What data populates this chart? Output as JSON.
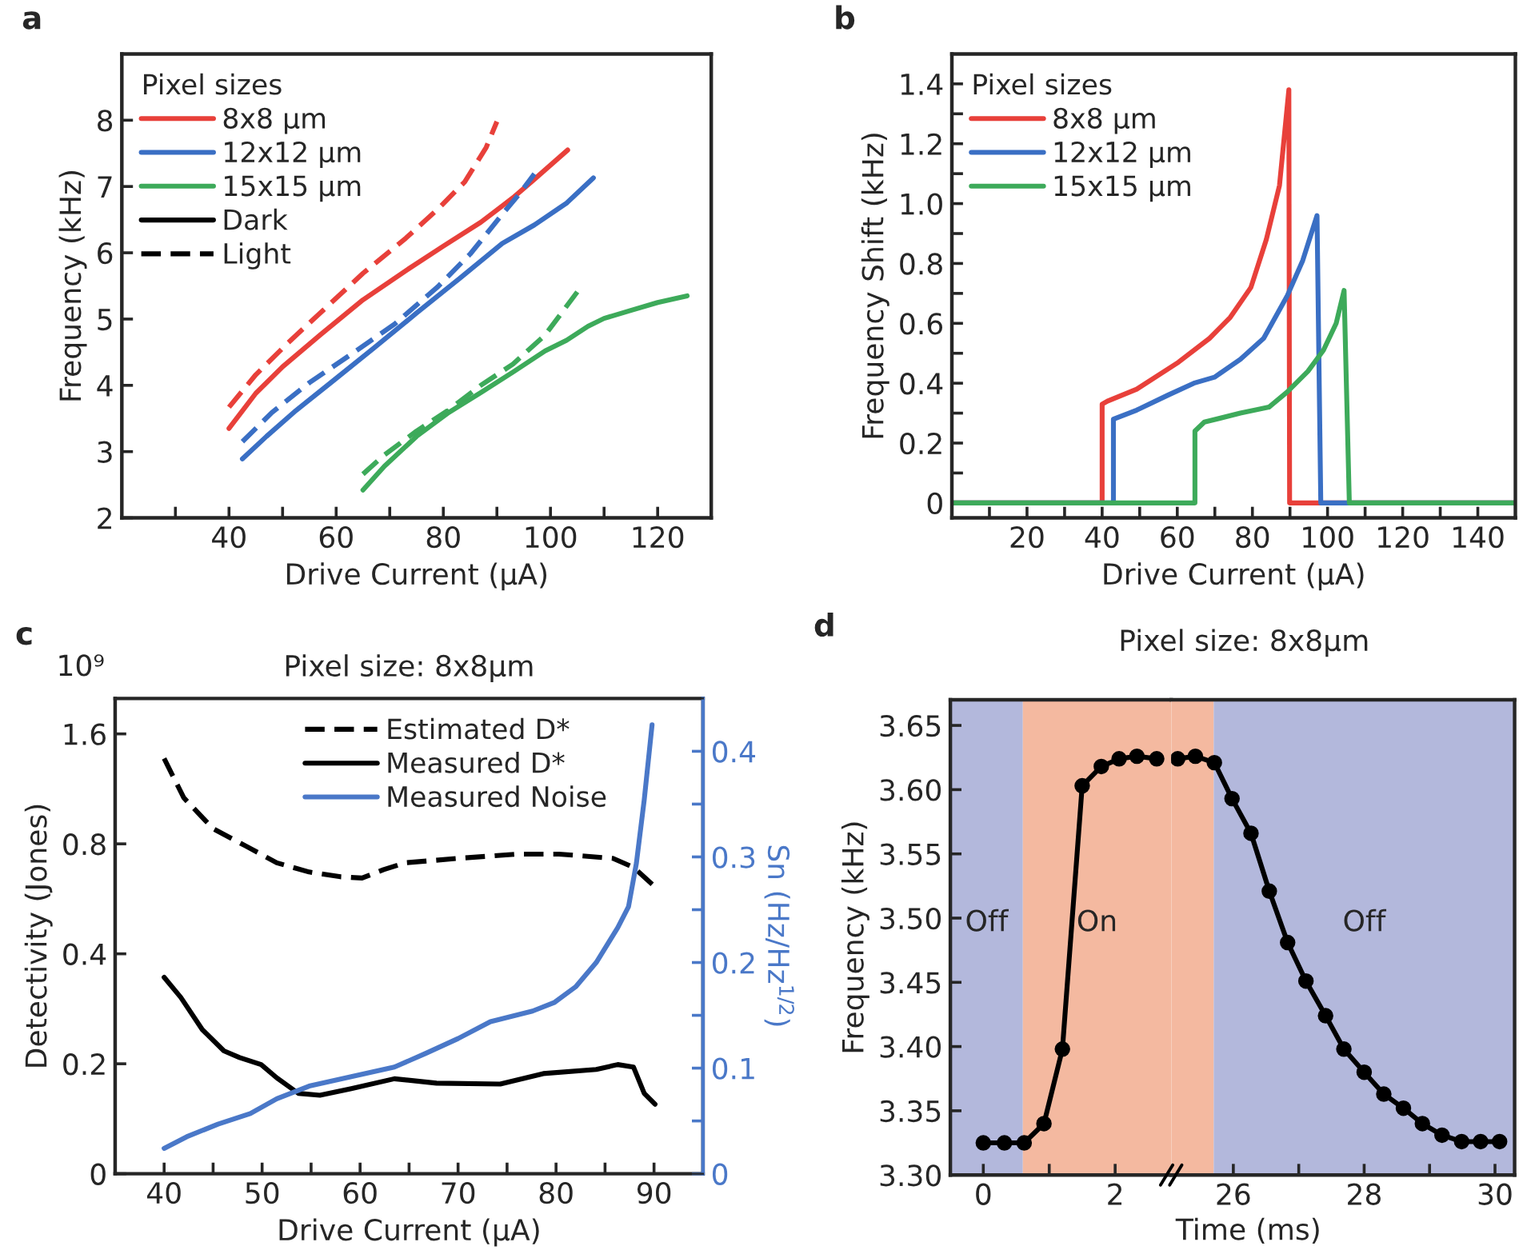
{
  "chart_data": [
    {
      "type": "line",
      "xlabel": "Drive Current (μA)",
      "ylabel": "Frequency (kHz)",
      "xlim": [
        20,
        130
      ],
      "ylim": [
        2,
        9
      ],
      "xticks": [
        {
          "value": 30,
          "label": null
        },
        40,
        {
          "value": 50,
          "label": null
        },
        60,
        {
          "value": 70,
          "label": null
        },
        80,
        {
          "value": 90,
          "label": null
        },
        100,
        {
          "value": 110,
          "label": null
        },
        120
      ],
      "yticks": [
        2,
        3,
        4,
        5,
        6,
        7,
        8
      ],
      "legend": "top left",
      "legend_title": "Pixel sizes",
      "annotations": [
        "a",
        "Dark",
        "Light"
      ],
      "series": [
        {
          "name": "8x8 μm",
          "color": "#e8403a",
          "line_style": "solid",
          "x": [
            40,
            45,
            50,
            57,
            65,
            73,
            80,
            87,
            93,
            97,
            103.2
          ],
          "values": [
            3.35,
            3.88,
            4.28,
            4.76,
            5.29,
            5.73,
            6.1,
            6.46,
            6.83,
            7.11,
            7.55
          ]
        },
        {
          "name": "12x12 μm",
          "color": "#3a6fc4",
          "line_style": "solid",
          "x": [
            42.5,
            47,
            52.5,
            59,
            67,
            75,
            83,
            91,
            97,
            103,
            108
          ],
          "values": [
            2.89,
            3.23,
            3.62,
            4.04,
            4.56,
            5.09,
            5.61,
            6.14,
            6.42,
            6.75,
            7.13
          ]
        },
        {
          "name": "15x15 μm",
          "color": "#3daa5a",
          "line_style": "solid",
          "x": [
            65,
            69,
            75,
            81,
            87,
            93,
            99,
            103,
            107,
            110,
            115,
            120,
            125.5
          ],
          "values": [
            2.42,
            2.78,
            3.23,
            3.59,
            3.89,
            4.2,
            4.52,
            4.68,
            4.89,
            5.01,
            5.13,
            5.25,
            5.35
          ]
        },
        {
          "color": "#e8403a",
          "line_style": "dashed",
          "x": [
            40,
            45,
            51,
            57,
            65,
            73,
            79,
            84,
            88,
            90
          ],
          "values": [
            3.67,
            4.16,
            4.64,
            5.09,
            5.69,
            6.22,
            6.66,
            7.07,
            7.59,
            7.98
          ]
        },
        {
          "color": "#3a6fc4",
          "line_style": "dashed",
          "x": [
            42.5,
            48,
            55,
            63,
            71,
            79,
            85,
            91,
            94,
            97
          ],
          "values": [
            3.15,
            3.59,
            4.04,
            4.48,
            4.93,
            5.49,
            5.98,
            6.58,
            6.87,
            7.19
          ]
        },
        {
          "color": "#3daa5a",
          "line_style": "dashed",
          "x": [
            65,
            69,
            75,
            81,
            87,
            93,
            99,
            105
          ],
          "values": [
            2.66,
            2.95,
            3.31,
            3.63,
            4.0,
            4.32,
            4.76,
            5.41
          ]
        }
      ]
    },
    {
      "type": "line",
      "xlabel": "Drive Current (μA)",
      "ylabel": "Frequency Shift (kHz)",
      "xlim": [
        0,
        150
      ],
      "ylim": [
        -0.05,
        1.5
      ],
      "xticks": [
        {
          "value": 10,
          "label": null
        },
        20,
        {
          "value": 30,
          "label": null
        },
        40,
        {
          "value": 50,
          "label": null
        },
        60,
        {
          "value": 70,
          "label": null
        },
        80,
        {
          "value": 90,
          "label": null
        },
        100,
        {
          "value": 110,
          "label": null
        },
        120,
        {
          "value": 130,
          "label": null
        },
        140
      ],
      "yticks": [
        0,
        {
          "value": 0.1,
          "label": null
        },
        0.2,
        {
          "value": 0.3,
          "label": null
        },
        0.4,
        {
          "value": 0.5,
          "label": null
        },
        0.6,
        {
          "value": 0.7,
          "label": null
        },
        0.8,
        {
          "value": 0.9,
          "label": null
        },
        {
          "value": 1.0,
          "label": "1.0"
        },
        {
          "value": 1.1,
          "label": null
        },
        1.2,
        {
          "value": 1.3,
          "label": null
        },
        1.4
      ],
      "legend": "top left",
      "legend_title": "Pixel sizes",
      "annotations": [
        "b"
      ],
      "series": [
        {
          "name": "8x8 μm",
          "color": "#e8403a",
          "line_style": "solid",
          "x": [
            0,
            40,
            40,
            41.4,
            49.2,
            60.3,
            68.6,
            74.1,
            79.6,
            83.7,
            87.2,
            89.7,
            89.9,
            150
          ],
          "values": [
            0,
            0,
            0.33,
            0.34,
            0.38,
            0.47,
            0.55,
            0.62,
            0.72,
            0.88,
            1.06,
            1.38,
            0,
            0
          ]
        },
        {
          "name": "12x12 μm",
          "color": "#3a6fc4",
          "line_style": "solid",
          "x": [
            0,
            43,
            43,
            49.2,
            57.5,
            64.4,
            69.9,
            76.8,
            83.0,
            89.2,
            93.4,
            97.2,
            98.2,
            150
          ],
          "values": [
            0,
            0,
            0.28,
            0.31,
            0.36,
            0.4,
            0.42,
            0.48,
            0.55,
            0.69,
            0.81,
            0.96,
            0,
            0
          ]
        },
        {
          "name": "15x15 μm",
          "color": "#3daa5a",
          "line_style": "solid",
          "x": [
            0,
            64.7,
            64.7,
            67.2,
            76.8,
            84.4,
            89.2,
            94.8,
            98.9,
            102.3,
            104.4,
            105.8,
            150
          ],
          "values": [
            0,
            0,
            0.24,
            0.27,
            0.3,
            0.32,
            0.37,
            0.44,
            0.51,
            0.6,
            0.71,
            0,
            0
          ]
        }
      ]
    },
    {
      "type": "line",
      "title": "Pixel size: 8x8μm",
      "xlabel": "Drive Current (μA)",
      "ylabel": "Detectivity (Jones)",
      "y2label": "Sn (Hz/Hz$^{1/2}$)",
      "log": "y",
      "xlim": [
        35,
        95
      ],
      "ylim": [
        0.1,
        2.0
      ],
      "y2lim": [
        0,
        0.45
      ],
      "xticks": [
        40,
        {
          "value": 45,
          "label": null
        },
        50,
        {
          "value": 55,
          "label": null
        },
        60,
        {
          "value": 65,
          "label": null
        },
        70,
        {
          "value": 75,
          "label": null
        },
        80,
        {
          "value": 85,
          "label": null
        },
        90
      ],
      "yticks": [
        {
          "value": 0.1,
          "label": "0"
        },
        0.2,
        0.4,
        0.8,
        1.6
      ],
      "y2ticks": [
        0,
        {
          "value": 0.05,
          "label": null
        },
        0.1,
        {
          "value": 0.15,
          "label": null
        },
        0.2,
        {
          "value": 0.25,
          "label": null
        },
        0.3,
        {
          "value": 0.35,
          "label": null
        },
        0.4
      ],
      "legend": "top right",
      "annotations": [
        "c",
        "10⁹"
      ],
      "series": [
        {
          "name": "Estimated D*",
          "color": "#000000",
          "line_style": "dashed",
          "x": [
            40,
            42,
            45,
            48.3,
            51.5,
            54.8,
            58,
            60.2,
            62.4,
            64.6,
            70,
            76,
            80.3,
            85.8,
            87.9,
            90.1
          ],
          "values": [
            1.37,
            1.07,
            0.88,
            0.79,
            0.71,
            0.67,
            0.65,
            0.645,
            0.68,
            0.71,
            0.73,
            0.75,
            0.75,
            0.73,
            0.69,
            0.61
          ]
        },
        {
          "name": "Measured D*",
          "color": "#000000",
          "line_style": "solid",
          "x": [
            40,
            41.7,
            43.9,
            46.1,
            47.7,
            49.9,
            51.5,
            53.7,
            55.9,
            59.1,
            63.5,
            67.8,
            74.3,
            78.7,
            84.1,
            86.3,
            87.9,
            89.0,
            90.1
          ],
          "values": [
            0.345,
            0.304,
            0.248,
            0.217,
            0.208,
            0.199,
            0.183,
            0.166,
            0.164,
            0.171,
            0.182,
            0.177,
            0.176,
            0.188,
            0.193,
            0.199,
            0.196,
            0.166,
            0.155
          ]
        },
        {
          "name": "Measured Noise",
          "color": "#4a78c8",
          "line_style": "solid",
          "axis": "y2",
          "x": [
            40,
            42.3,
            45.5,
            48.8,
            51.5,
            54.8,
            59.1,
            63.5,
            66.7,
            70,
            73.3,
            77.6,
            79.8,
            82,
            84.1,
            86.3,
            87.4,
            88.2,
            89,
            89.8
          ],
          "values": [
            0.024,
            0.035,
            0.047,
            0.057,
            0.071,
            0.083,
            0.092,
            0.101,
            0.114,
            0.128,
            0.144,
            0.154,
            0.162,
            0.177,
            0.2,
            0.233,
            0.253,
            0.294,
            0.354,
            0.425
          ]
        }
      ]
    },
    {
      "type": "line",
      "title": "Pixel size: 8x8μm",
      "xlabel": "Time (ms)",
      "ylabel": "Frequency (kHz)",
      "marker": "circle",
      "xlim": [
        -0.5,
        2.85
      ],
      "ylim": [
        3.3,
        3.67
      ],
      "xticks": [
        0,
        {
          "value": 1,
          "label": null
        },
        2
      ],
      "yticks": [
        {
          "value": 3.3,
          "label": "3.30"
        },
        {
          "value": 3.35,
          "label": "3.35"
        },
        {
          "value": 3.4,
          "label": "3.40"
        },
        {
          "value": 3.45,
          "label": "3.45"
        },
        {
          "value": 3.5,
          "label": "3.50"
        },
        {
          "value": 3.55,
          "label": "3.55"
        },
        {
          "value": 3.6,
          "label": "3.60"
        },
        {
          "value": 3.65,
          "label": "3.65"
        }
      ],
      "annotations": [
        "d"
      ],
      "bands": [
        {
          "axis": "x",
          "from": -0.5,
          "to": 0.6,
          "label": "Off",
          "color": "#b3b8dc"
        },
        {
          "axis": "x",
          "from": 0.6,
          "to": 2.85,
          "label": "On",
          "color": "#f4b9a0"
        }
      ],
      "series": [
        {
          "color": "#000000",
          "line_style": "solid",
          "x": [
            0,
            0.32,
            0.62,
            0.92,
            1.2,
            1.5,
            1.79,
            2.06,
            2.33,
            2.63
          ],
          "values": [
            3.325,
            3.325,
            3.325,
            3.34,
            3.398,
            3.603,
            3.618,
            3.624,
            3.626,
            3.624
          ]
        }
      ]
    },
    {
      "type": "line",
      "marker": "circle",
      "xlim": [
        25.05,
        30.3
      ],
      "ylim": [
        3.3,
        3.67
      ],
      "tick_labels": "x",
      "xticks": [
        26,
        {
          "value": 27,
          "label": null
        },
        28,
        {
          "value": 29,
          "label": null
        },
        30
      ],
      "bands": [
        {
          "axis": "x",
          "from": 25.05,
          "to": 25.7,
          "color": "#f4b9a0"
        },
        {
          "axis": "x",
          "from": 25.7,
          "to": 30.3,
          "label": "Off",
          "color": "#b3b8dc"
        }
      ],
      "series": [
        {
          "color": "#000000",
          "line_style": "solid",
          "x": [
            25.15,
            25.42,
            25.71,
            25.98,
            26.27,
            26.55,
            26.83,
            27.11,
            27.41,
            27.69,
            28.0,
            28.3,
            28.6,
            28.89,
            29.19,
            29.49,
            29.78,
            30.07
          ],
          "values": [
            3.624,
            3.626,
            3.621,
            3.593,
            3.566,
            3.521,
            3.481,
            3.451,
            3.424,
            3.398,
            3.38,
            3.363,
            3.352,
            3.34,
            3.331,
            3.326,
            3.326,
            3.326
          ]
        }
      ]
    }
  ]
}
